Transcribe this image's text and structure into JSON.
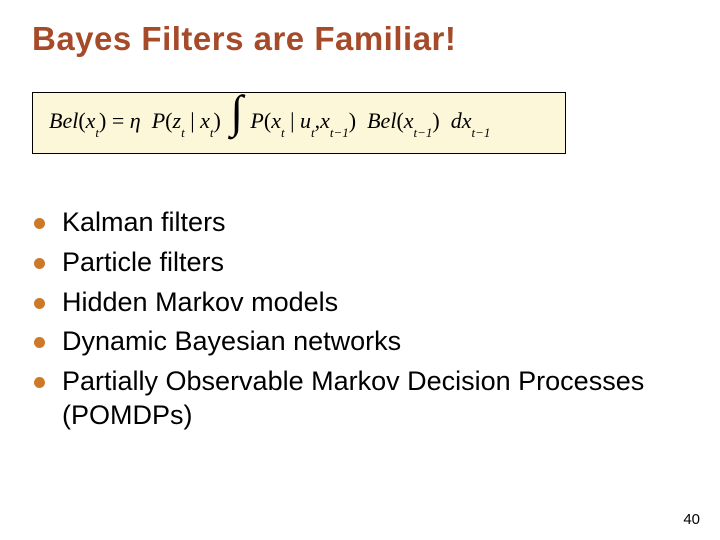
{
  "title": {
    "text": "Bayes Filters are Familiar!",
    "color": "#a64b29"
  },
  "equation": {
    "background": "#fdf7d9",
    "border_color": "#000000",
    "lhs_func": "Bel",
    "lhs_arg": "x",
    "lhs_sub": "t",
    "eta": "η",
    "p1_func": "P",
    "p1_a": "z",
    "p1_a_sub": "t",
    "p1_b": "x",
    "p1_b_sub": "t",
    "p2_func": "P",
    "p2_a": "x",
    "p2_a_sub": "t",
    "p2_b": "u",
    "p2_b_sub": "t",
    "p2_c": "x",
    "p2_c_sub": "t−1",
    "bel2_func": "Bel",
    "bel2_arg": "x",
    "bel2_sub": "t−1",
    "dx": "dx",
    "dx_sub": "t−1"
  },
  "bullets": {
    "color": "#cc7a29",
    "items": [
      "Kalman filters",
      "Particle filters",
      "Hidden Markov models",
      "Dynamic Bayesian networks",
      "Partially Observable Markov Decision Processes (POMDPs)"
    ]
  },
  "page_number": "40"
}
